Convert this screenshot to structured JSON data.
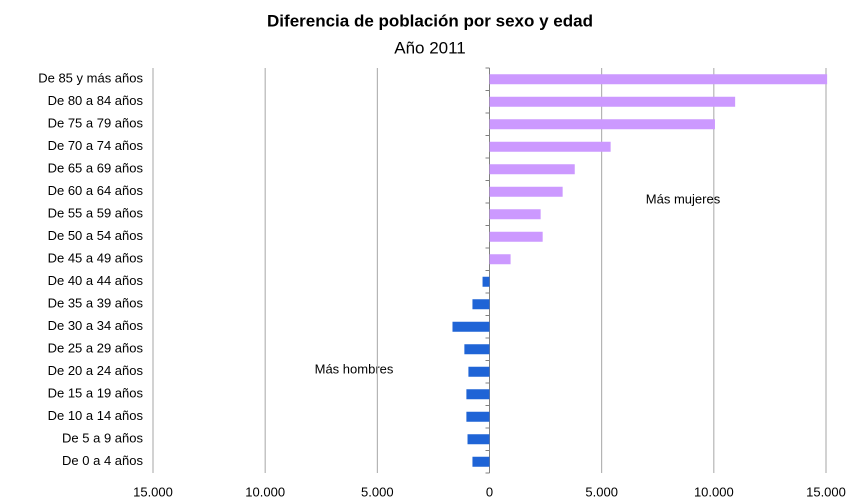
{
  "chart_data": {
    "type": "hbar",
    "title": "Diferencia de población por sexo y edad",
    "subtitle": "Año 2011",
    "categories": [
      "De 85 y más años",
      "De 80 a 84 años",
      "De 75 a 79 años",
      "De 70 a 74 años",
      "De 65 a 69 años",
      "De 60 a 64 años",
      "De 55 a 59 años",
      "De 50 a 54 años",
      "De 45 a 49 años",
      "De 40 a 44 años",
      "De 35 a 39 años",
      "De 30 a 34 años",
      "De 25 a 29 años",
      "De 20 a 24 años",
      "De 15 a 19 años",
      "De 10 a 14 años",
      "De 5 a 9 años",
      "De 0 a 4 años"
    ],
    "values": [
      15050,
      10950,
      10050,
      5400,
      3800,
      3260,
      2280,
      2370,
      940,
      -310,
      -760,
      -1650,
      -1120,
      -940,
      -1030,
      -1030,
      -980,
      -760
    ],
    "positive_color": "#cc99ff",
    "negative_color": "#1f64d6",
    "xlim": [
      -15000,
      15000
    ],
    "xticks": [
      {
        "value": -15000,
        "label": "15.000"
      },
      {
        "value": -10000,
        "label": "10.000"
      },
      {
        "value": -5000,
        "label": "5.000"
      },
      0,
      {
        "value": 5000,
        "label": "5.000"
      },
      {
        "value": 10000,
        "label": "10.000"
      },
      {
        "value": 15000,
        "label": "15.000"
      }
    ],
    "grid": true,
    "annotations": [
      "Más mujeres",
      "Más hombres"
    ]
  }
}
